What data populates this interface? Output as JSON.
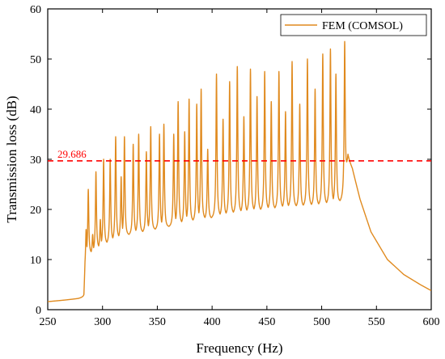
{
  "chart_data": {
    "type": "line",
    "xlabel": "Frequency (Hz)",
    "ylabel": "Transmission loss (dB)",
    "xlim": [
      250,
      600
    ],
    "ylim": [
      0,
      60
    ],
    "x_ticks": [
      250,
      300,
      350,
      400,
      450,
      500,
      550,
      600
    ],
    "y_ticks": [
      0,
      10,
      20,
      30,
      40,
      50,
      60
    ],
    "grid": false,
    "legend_position": "top-right",
    "colors": {
      "series": "#e08a1e",
      "reference": "#ff0000",
      "axes": "#000000"
    },
    "series": [
      {
        "name": "FEM (COMSOL)",
        "baseline_points": [
          [
            250,
            1.6
          ],
          [
            265,
            1.9
          ],
          [
            278,
            2.2
          ],
          [
            283,
            2.5
          ],
          [
            284,
            8
          ],
          [
            286,
            10.5
          ],
          [
            300,
            12.5
          ],
          [
            320,
            14.5
          ],
          [
            340,
            15.3
          ],
          [
            360,
            16.3
          ],
          [
            380,
            17.2
          ],
          [
            400,
            18.0
          ],
          [
            420,
            18.8
          ],
          [
            440,
            19.3
          ],
          [
            460,
            19.8
          ],
          [
            480,
            20.2
          ],
          [
            500,
            20.5
          ],
          [
            515,
            20.9
          ],
          [
            521,
            22.0
          ],
          [
            524,
            30.0
          ],
          [
            528,
            28.0
          ],
          [
            535,
            22.0
          ],
          [
            545,
            15.5
          ],
          [
            560,
            10.0
          ],
          [
            575,
            7.0
          ],
          [
            590,
            5.0
          ],
          [
            600,
            3.8
          ]
        ],
        "peaks": [
          {
            "x": 283,
            "y": 3.0
          },
          {
            "x": 285,
            "y": 16.0
          },
          {
            "x": 287,
            "y": 24.0
          },
          {
            "x": 291,
            "y": 15.0
          },
          {
            "x": 294,
            "y": 27.5
          },
          {
            "x": 298,
            "y": 18.0
          },
          {
            "x": 301,
            "y": 30.0
          },
          {
            "x": 307,
            "y": 30.0
          },
          {
            "x": 312,
            "y": 34.5
          },
          {
            "x": 317,
            "y": 26.5
          },
          {
            "x": 320,
            "y": 34.5
          },
          {
            "x": 328,
            "y": 33.0
          },
          {
            "x": 333,
            "y": 35.0
          },
          {
            "x": 340,
            "y": 31.5
          },
          {
            "x": 344,
            "y": 36.5
          },
          {
            "x": 352,
            "y": 35.0
          },
          {
            "x": 356,
            "y": 37.0
          },
          {
            "x": 365,
            "y": 35.0
          },
          {
            "x": 369,
            "y": 41.5
          },
          {
            "x": 375,
            "y": 35.5
          },
          {
            "x": 379,
            "y": 42.0
          },
          {
            "x": 386,
            "y": 41.0
          },
          {
            "x": 390,
            "y": 44.0
          },
          {
            "x": 396,
            "y": 32.0
          },
          {
            "x": 404,
            "y": 47.0
          },
          {
            "x": 410,
            "y": 38.0
          },
          {
            "x": 416,
            "y": 45.5
          },
          {
            "x": 423,
            "y": 48.5
          },
          {
            "x": 429,
            "y": 38.5
          },
          {
            "x": 435,
            "y": 48.0
          },
          {
            "x": 441,
            "y": 42.5
          },
          {
            "x": 448,
            "y": 47.5
          },
          {
            "x": 454,
            "y": 41.5
          },
          {
            "x": 461,
            "y": 47.5
          },
          {
            "x": 467,
            "y": 39.5
          },
          {
            "x": 473,
            "y": 49.5
          },
          {
            "x": 480,
            "y": 41.0
          },
          {
            "x": 487,
            "y": 50.0
          },
          {
            "x": 494,
            "y": 44.0
          },
          {
            "x": 501,
            "y": 51.0
          },
          {
            "x": 508,
            "y": 52.0
          },
          {
            "x": 513,
            "y": 47.0
          },
          {
            "x": 521,
            "y": 53.5
          }
        ]
      }
    ],
    "reference_line": {
      "y": 29.686,
      "label": "29.686",
      "style": "dashed"
    }
  }
}
